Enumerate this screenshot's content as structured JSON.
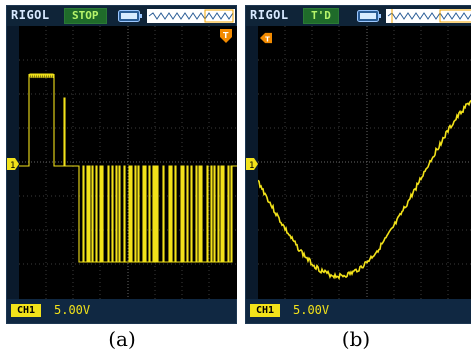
{
  "panels": [
    {
      "brand": "RIGOL",
      "status": "STOP",
      "channel_label": "CH1",
      "scale": "5.00V",
      "caption": "(a)"
    },
    {
      "brand": "RIGOL",
      "status": "T'D",
      "channel_label": "CH1",
      "scale": "5.00V",
      "caption": "(b)"
    }
  ],
  "colors": {
    "trace": "#f2e21a",
    "status_bg": "#1f6b2a",
    "status_text": "#b6f56a",
    "frame": "#0a1a2c",
    "screen": "#000000",
    "grid": "#4a4a4a"
  },
  "icons": [
    "battery-icon",
    "timebase-wave-icon",
    "channel-1-marker-icon",
    "trigger-marker-icon"
  ]
}
